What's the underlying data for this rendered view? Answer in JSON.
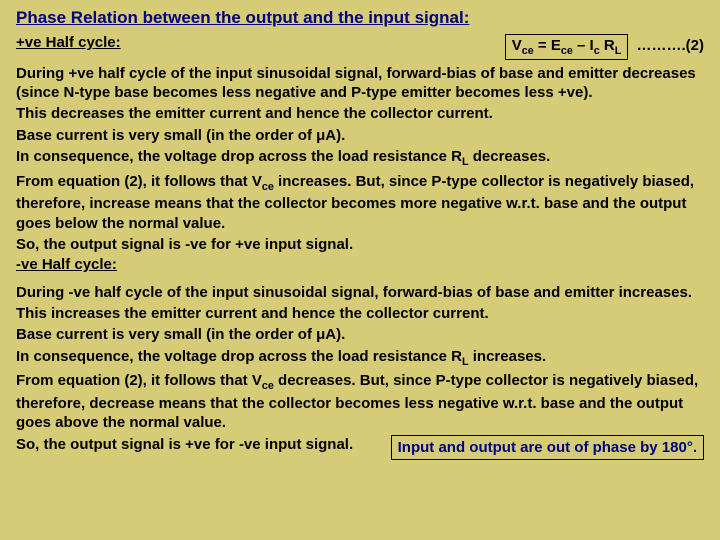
{
  "colors": {
    "background": "#d6cc78",
    "title": "#000080",
    "body_text": "#000000",
    "box_border": "#000000",
    "conclusion_text": "#000080"
  },
  "fonts": {
    "title_size": 17,
    "body_size": 15,
    "sub_scale": 0.72,
    "weight": "bold",
    "line_height": 1.28
  },
  "title": "Phase Relation between the output and the input signal:",
  "sub1": "+ve Half cycle:",
  "eq_lhs": "V",
  "eq_sub1": "ce",
  "eq_mid1": " = E",
  "eq_sub2": "ce",
  "eq_mid2": " – I",
  "eq_sub3": "c",
  "eq_mid3": " R",
  "eq_sub4": "L",
  "eq_num": " ……….(2)",
  "p1a": "During +ve half cycle of the input sinusoidal signal, forward-bias of base and emitter decreases (since N-type base becomes less negative and P-type emitter becomes less +ve).",
  "p1b": "This decreases the emitter current and hence the collector current.",
  "p1c": "Base current is very small (in the order of μA).",
  "p1d_a": "In consequence, the voltage drop across the load resistance R",
  "p1d_sub": "L",
  "p1d_b": " decreases.",
  "p1e_a": "From equation (2), it follows that V",
  "p1e_sub": "ce",
  "p1e_b": " increases.  But, since P-type collector is negatively biased, therefore, increase means that the collector becomes more negative w.r.t. base and the output goes below the normal value.",
  "p1f": "So, the output signal is -ve for +ve input signal.",
  "sub2": "-ve Half cycle:",
  "p2a": "During -ve half cycle of the input sinusoidal signal, forward-bias of base and emitter increases.",
  "p2b": "This increases the emitter current and hence the collector current.",
  "p2c": "Base current is very small (in the order of μA).",
  "p2d_a": "In consequence, the voltage drop across the load resistance R",
  "p2d_sub": "L",
  "p2d_b": " increases.",
  "p2e_a": "From equation (2), it follows that V",
  "p2e_sub": "ce",
  "p2e_b": " decreases. But, since P-type collector is negatively biased, therefore, decrease means that the collector becomes less negative w.r.t. base and the output goes above the normal value.",
  "p2f": "So, the output signal is +ve for -ve input signal.",
  "conclusion": "Input and output are out of phase by 180°."
}
